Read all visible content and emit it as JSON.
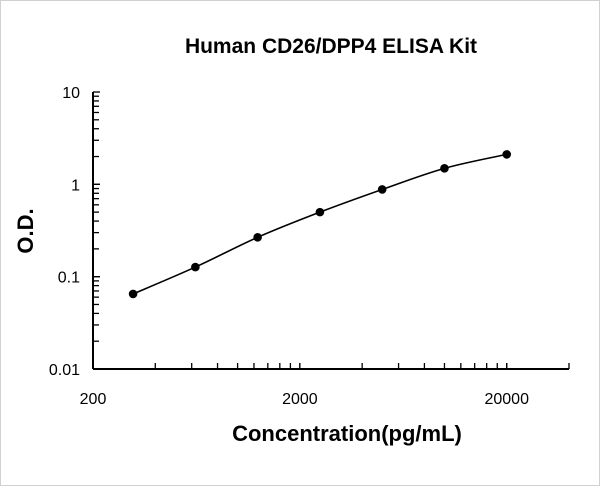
{
  "chart_data": {
    "type": "scatter",
    "title": "Human CD26/DPP4 ELISA Kit",
    "xlabel": "Concentration(pg/mL)",
    "ylabel": "O.D.",
    "xscale": "log",
    "yscale": "log",
    "xlim": [
      200,
      40000
    ],
    "ylim": [
      0.01,
      10
    ],
    "xticks": [
      {
        "value": 200,
        "label": "200"
      },
      {
        "value": 2000,
        "label": "2000"
      },
      {
        "value": 20000,
        "label": "20000"
      }
    ],
    "yticks": [
      {
        "value": 10,
        "label": "10"
      },
      {
        "value": 1,
        "label": "1"
      },
      {
        "value": 0.1,
        "label": "0.1"
      },
      {
        "value": 0.01,
        "label": "0.01"
      }
    ],
    "grid": false,
    "smooth_line": true,
    "color": "#000000",
    "x": [
      312.5,
      625,
      1250,
      2500,
      5000,
      10000,
      20000
    ],
    "y": [
      0.065,
      0.127,
      0.267,
      0.5,
      0.88,
      1.49,
      2.11
    ]
  }
}
